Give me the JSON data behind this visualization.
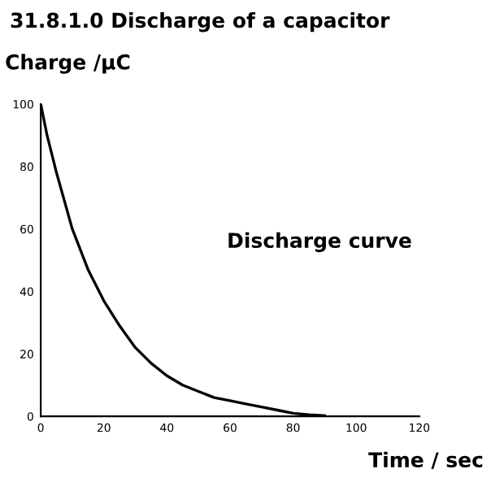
{
  "chart_data": {
    "type": "line",
    "title": "31.8.1.0 Discharge of a capacitor",
    "ylabel": "Charge /μC",
    "xlabel": "Time / sec",
    "x": [
      0,
      2,
      5,
      10,
      15,
      20,
      25,
      30,
      35,
      40,
      45,
      50,
      55,
      60,
      65,
      70,
      75,
      80,
      85,
      90
    ],
    "series": [
      {
        "name": "Discharge curve",
        "color": "#000000",
        "values": [
          100,
          90,
          78,
          60,
          47,
          37,
          29,
          22,
          17,
          13,
          10,
          8,
          6,
          5,
          4,
          3,
          2,
          1,
          0.5,
          0.2
        ]
      }
    ],
    "xlim": [
      0,
      120
    ],
    "ylim": [
      0,
      100
    ],
    "xticks": [
      0,
      20,
      40,
      60,
      80,
      100,
      120
    ],
    "yticks": [
      0,
      20,
      40,
      60,
      80,
      100
    ],
    "grid": false,
    "legend": false,
    "marker": "none",
    "line_style": "solid"
  }
}
